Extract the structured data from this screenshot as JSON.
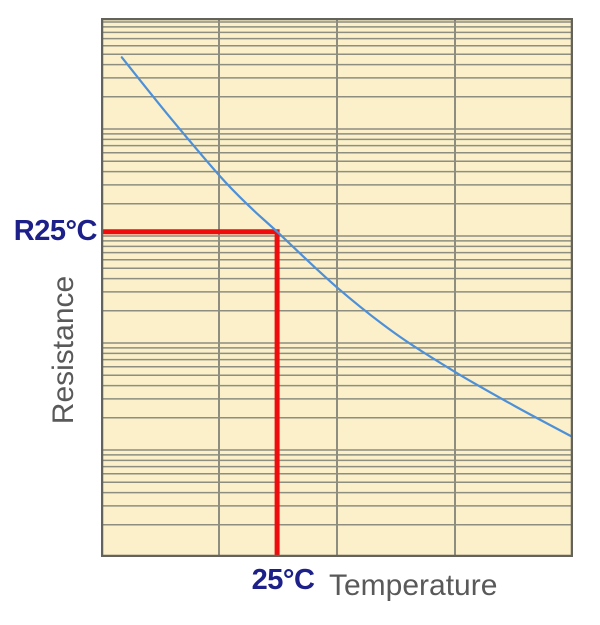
{
  "figure": {
    "canvas_bg": "#ffffff",
    "plot_bg": "#FBF0C9",
    "grid_color": "#8D8D80",
    "border_color": "#63635B",
    "curve_color": "#4E90D8",
    "annotation_line_color": "#EE0C0C",
    "annotation_text_color": "#1D2088",
    "axis_text_color": "#595959"
  },
  "chart_data": {
    "type": "line",
    "title": "",
    "xlabel": "Temperature",
    "ylabel": "Resistance",
    "x_axis": {
      "scale": "linear",
      "major_divisions": 4,
      "tick_labels": []
    },
    "y_axis": {
      "scale": "log",
      "decades_visible": 5,
      "tick_labels": []
    },
    "grid": true,
    "legend": false,
    "series": [
      {
        "name": "resistance-vs-temperature-curve",
        "points": [
          [
            0.044,
            4.67
          ],
          [
            0.146,
            4.11
          ],
          [
            0.252,
            3.56
          ],
          [
            0.316,
            3.27
          ],
          [
            0.373,
            3.04
          ],
          [
            0.5,
            2.52
          ],
          [
            0.623,
            2.09
          ],
          [
            0.75,
            1.73
          ],
          [
            0.877,
            1.41
          ],
          [
            1.0,
            1.12
          ]
        ],
        "points_format": "x = fraction of temperature axis (0..1), y = log-decades above bottom of resistance axis (0..5)"
      }
    ],
    "annotations": {
      "marked_point": {
        "x_label": "25°C",
        "y_label": "R25°C",
        "x_frac": 0.373,
        "y_log_decades": 3.04
      }
    }
  }
}
